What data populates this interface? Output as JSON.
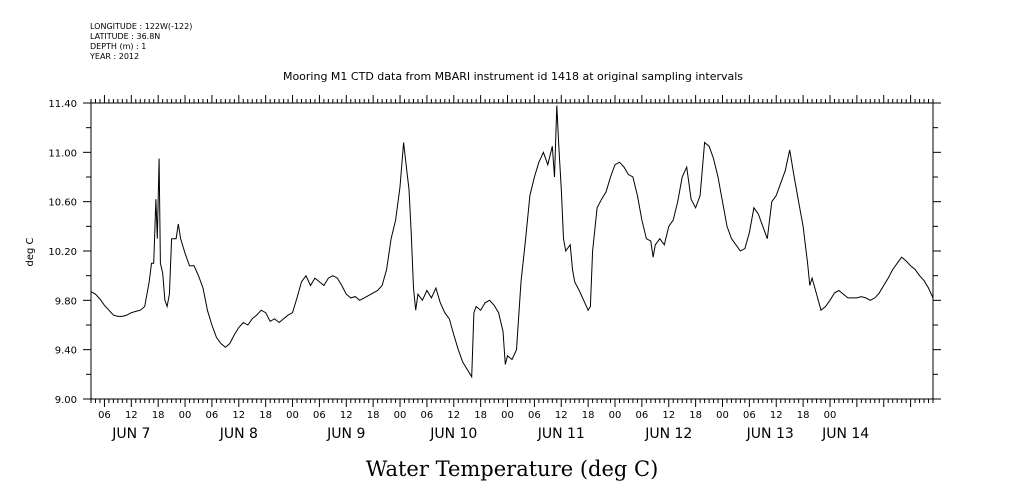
{
  "metadata": {
    "longitude": "LONGITUDE : 122W(-122)",
    "latitude": "LATITUDE : 36.8N",
    "depth": "DEPTH (m) : 1",
    "year": "YEAR : 2012"
  },
  "chart_data": {
    "type": "line",
    "title": "Mooring M1 CTD data from MBARI instrument id 1418 at original sampling intervals",
    "xlabel": "Water Temperature (deg C)",
    "ylabel": "deg C",
    "ylim": [
      9.0,
      11.4
    ],
    "xlim_hours": [
      3,
      171
    ],
    "grid": false,
    "y_ticks": [
      "9.00",
      "9.40",
      "9.80",
      "10.20",
      "10.60",
      "11.00",
      "11.40"
    ],
    "y_tick_values": [
      9.0,
      9.4,
      9.8,
      10.2,
      10.6,
      11.0,
      11.4
    ],
    "x_hour_ticks": [
      "06",
      "12",
      "18",
      "00",
      "06",
      "12",
      "18",
      "00",
      "06",
      "12",
      "18",
      "00",
      "06",
      "12",
      "18",
      "00",
      "06",
      "12",
      "18",
      "00",
      "06",
      "12",
      "18",
      "00",
      "06",
      "12",
      "18",
      "00"
    ],
    "day_labels": [
      "JUN  7",
      "JUN  8",
      "JUN  9",
      "JUN 10",
      "JUN 11",
      "JUN 12",
      "JUN 13",
      "JUN 14"
    ],
    "series": [
      {
        "color": "#000000",
        "points": [
          [
            3,
            9.87
          ],
          [
            4,
            9.85
          ],
          [
            5,
            9.81
          ],
          [
            6,
            9.76
          ],
          [
            7,
            9.72
          ],
          [
            8,
            9.68
          ],
          [
            9,
            9.67
          ],
          [
            10,
            9.67
          ],
          [
            11,
            9.68
          ],
          [
            12,
            9.7
          ],
          [
            13,
            9.71
          ],
          [
            14,
            9.72
          ],
          [
            15,
            9.75
          ],
          [
            16,
            9.95
          ],
          [
            16.5,
            10.1
          ],
          [
            17,
            10.1
          ],
          [
            17.5,
            10.62
          ],
          [
            17.8,
            10.3
          ],
          [
            18.2,
            10.95
          ],
          [
            18.5,
            10.1
          ],
          [
            19,
            10.02
          ],
          [
            19.5,
            9.8
          ],
          [
            20,
            9.75
          ],
          [
            20.5,
            9.85
          ],
          [
            21,
            10.3
          ],
          [
            22,
            10.3
          ],
          [
            22.5,
            10.42
          ],
          [
            23,
            10.3
          ],
          [
            24,
            10.18
          ],
          [
            25,
            10.08
          ],
          [
            26,
            10.08
          ],
          [
            27,
            10.0
          ],
          [
            28,
            9.9
          ],
          [
            29,
            9.72
          ],
          [
            30,
            9.6
          ],
          [
            31,
            9.5
          ],
          [
            32,
            9.45
          ],
          [
            33,
            9.42
          ],
          [
            34,
            9.45
          ],
          [
            35,
            9.52
          ],
          [
            36,
            9.58
          ],
          [
            37,
            9.62
          ],
          [
            38,
            9.6
          ],
          [
            39,
            9.65
          ],
          [
            40,
            9.68
          ],
          [
            41,
            9.72
          ],
          [
            42,
            9.7
          ],
          [
            43,
            9.63
          ],
          [
            44,
            9.65
          ],
          [
            45,
            9.62
          ],
          [
            46,
            9.65
          ],
          [
            47,
            9.68
          ],
          [
            48,
            9.7
          ],
          [
            49,
            9.82
          ],
          [
            50,
            9.95
          ],
          [
            51,
            10.0
          ],
          [
            52,
            9.92
          ],
          [
            53,
            9.98
          ],
          [
            54,
            9.95
          ],
          [
            55,
            9.92
          ],
          [
            56,
            9.98
          ],
          [
            57,
            10.0
          ],
          [
            58,
            9.98
          ],
          [
            59,
            9.92
          ],
          [
            60,
            9.85
          ],
          [
            61,
            9.82
          ],
          [
            62,
            9.83
          ],
          [
            63,
            9.8
          ],
          [
            64,
            9.82
          ],
          [
            65,
            9.84
          ],
          [
            66,
            9.86
          ],
          [
            67,
            9.88
          ],
          [
            68,
            9.92
          ],
          [
            69,
            10.05
          ],
          [
            70,
            10.3
          ],
          [
            71,
            10.45
          ],
          [
            72,
            10.72
          ],
          [
            72.8,
            11.08
          ],
          [
            73.5,
            10.85
          ],
          [
            74,
            10.7
          ],
          [
            74.5,
            10.35
          ],
          [
            75,
            9.9
          ],
          [
            75.5,
            9.72
          ],
          [
            76,
            9.85
          ],
          [
            77,
            9.8
          ],
          [
            78,
            9.88
          ],
          [
            79,
            9.82
          ],
          [
            80,
            9.9
          ],
          [
            81,
            9.78
          ],
          [
            82,
            9.7
          ],
          [
            83,
            9.65
          ],
          [
            84,
            9.52
          ],
          [
            85,
            9.4
          ],
          [
            86,
            9.3
          ],
          [
            87,
            9.24
          ],
          [
            88,
            9.18
          ],
          [
            88.5,
            9.7
          ],
          [
            89,
            9.75
          ],
          [
            90,
            9.72
          ],
          [
            91,
            9.78
          ],
          [
            92,
            9.8
          ],
          [
            93,
            9.76
          ],
          [
            94,
            9.7
          ],
          [
            95,
            9.55
          ],
          [
            95.5,
            9.28
          ],
          [
            96,
            9.35
          ],
          [
            97,
            9.32
          ],
          [
            98,
            9.4
          ],
          [
            99,
            9.95
          ],
          [
            100,
            10.28
          ],
          [
            101,
            10.65
          ],
          [
            102,
            10.8
          ],
          [
            103,
            10.92
          ],
          [
            104,
            11.0
          ],
          [
            105,
            10.9
          ],
          [
            106,
            11.05
          ],
          [
            106.5,
            10.8
          ],
          [
            107,
            11.38
          ],
          [
            107.5,
            11.02
          ],
          [
            108,
            10.7
          ],
          [
            108.5,
            10.3
          ],
          [
            109,
            10.2
          ],
          [
            110,
            10.25
          ],
          [
            110.5,
            10.05
          ],
          [
            111,
            9.95
          ],
          [
            112,
            9.88
          ],
          [
            113,
            9.8
          ],
          [
            114,
            9.72
          ],
          [
            114.5,
            9.75
          ],
          [
            115,
            10.2
          ],
          [
            116,
            10.55
          ],
          [
            117,
            10.62
          ],
          [
            118,
            10.68
          ],
          [
            119,
            10.8
          ],
          [
            120,
            10.9
          ],
          [
            121,
            10.92
          ],
          [
            122,
            10.88
          ],
          [
            123,
            10.82
          ],
          [
            124,
            10.8
          ],
          [
            125,
            10.65
          ],
          [
            126,
            10.45
          ],
          [
            127,
            10.3
          ],
          [
            128,
            10.28
          ],
          [
            128.5,
            10.15
          ],
          [
            129,
            10.25
          ],
          [
            130,
            10.3
          ],
          [
            131,
            10.25
          ],
          [
            132,
            10.4
          ],
          [
            133,
            10.45
          ],
          [
            134,
            10.6
          ],
          [
            135,
            10.8
          ],
          [
            136,
            10.88
          ],
          [
            137,
            10.62
          ],
          [
            138,
            10.55
          ],
          [
            139,
            10.65
          ],
          [
            140,
            11.08
          ],
          [
            141,
            11.05
          ],
          [
            142,
            10.95
          ],
          [
            143,
            10.8
          ],
          [
            144,
            10.6
          ],
          [
            145,
            10.4
          ],
          [
            146,
            10.3
          ],
          [
            147,
            10.25
          ],
          [
            148,
            10.2
          ],
          [
            149,
            10.22
          ],
          [
            150,
            10.35
          ],
          [
            151,
            10.55
          ],
          [
            152,
            10.5
          ],
          [
            153,
            10.4
          ],
          [
            154,
            10.3
          ],
          [
            155,
            10.6
          ],
          [
            156,
            10.65
          ],
          [
            157,
            10.75
          ],
          [
            158,
            10.85
          ],
          [
            159,
            11.02
          ],
          [
            160,
            10.8
          ],
          [
            161,
            10.6
          ],
          [
            162,
            10.4
          ],
          [
            163,
            10.1
          ],
          [
            163.5,
            9.92
          ],
          [
            164,
            9.98
          ],
          [
            165,
            9.85
          ],
          [
            166,
            9.72
          ],
          [
            167,
            9.75
          ],
          [
            168,
            9.8
          ],
          [
            169,
            9.86
          ],
          [
            170,
            9.88
          ],
          [
            171,
            9.85
          ],
          [
            172,
            9.82
          ],
          [
            173,
            9.82
          ],
          [
            174,
            9.82
          ],
          [
            175,
            9.83
          ],
          [
            176,
            9.82
          ],
          [
            177,
            9.8
          ],
          [
            178,
            9.82
          ],
          [
            179,
            9.86
          ],
          [
            180,
            9.92
          ],
          [
            181,
            9.98
          ],
          [
            182,
            10.05
          ],
          [
            183,
            10.1
          ],
          [
            184,
            10.15
          ],
          [
            185,
            10.12
          ],
          [
            186,
            10.08
          ],
          [
            187,
            10.05
          ],
          [
            188,
            10.0
          ],
          [
            189,
            9.96
          ],
          [
            190,
            9.9
          ],
          [
            191,
            9.82
          ]
        ]
      }
    ]
  }
}
